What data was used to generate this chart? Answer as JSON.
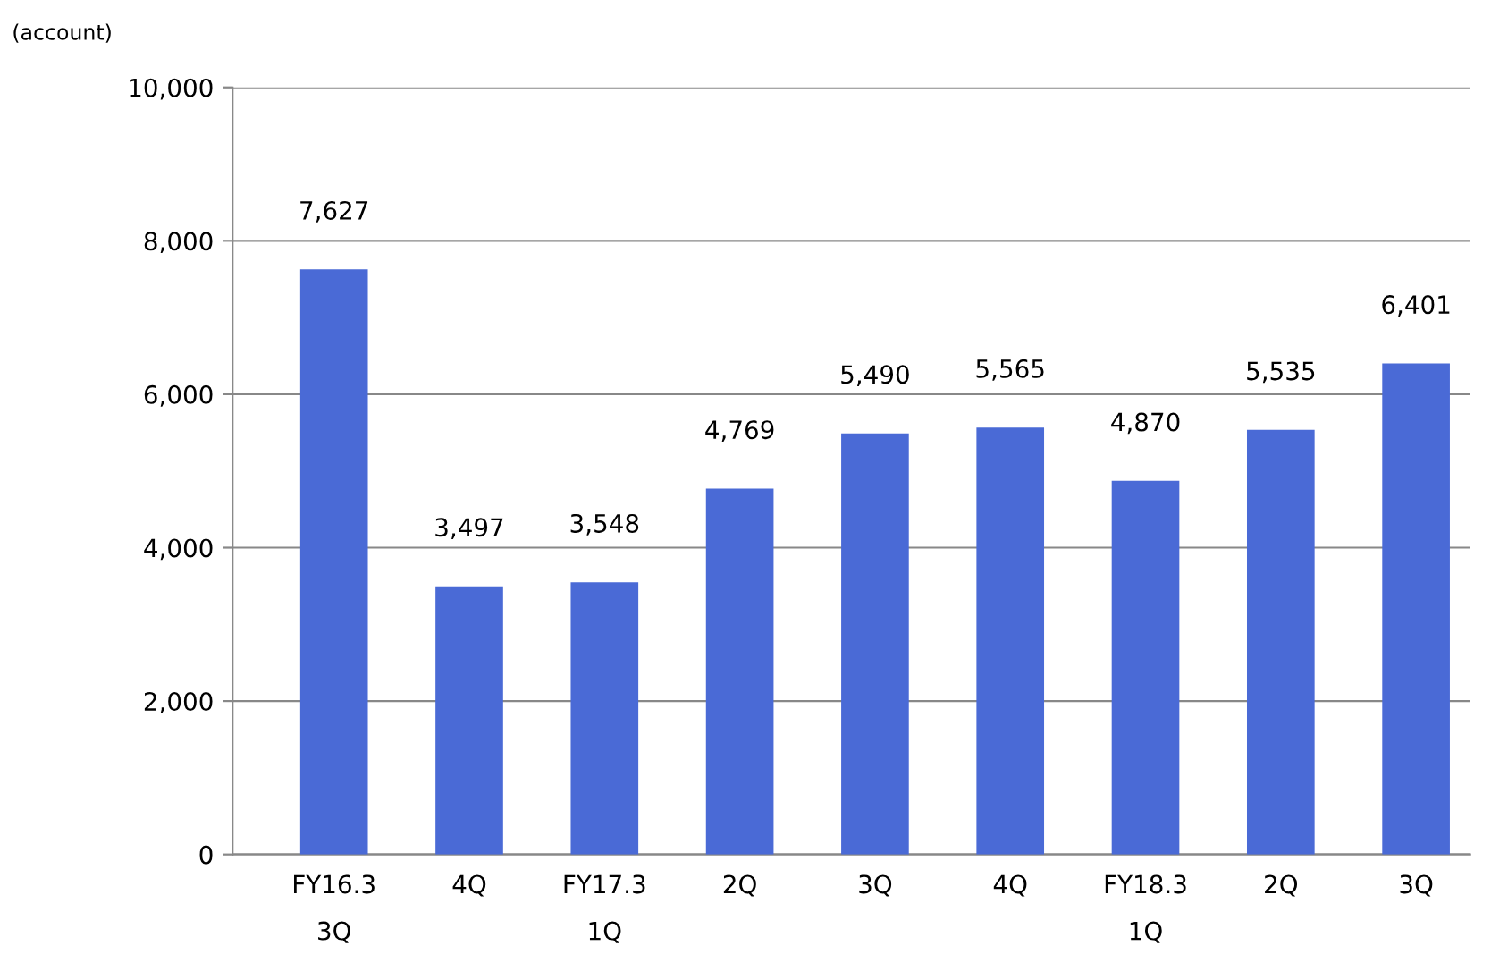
{
  "chart_data": {
    "type": "bar",
    "ylabel": "(account)",
    "categories": [
      "FY16.3\n3Q",
      "4Q",
      "FY17.3\n1Q",
      "2Q",
      "3Q",
      "4Q",
      "FY18.3\n1Q",
      "2Q",
      "3Q"
    ],
    "values": [
      7627,
      3497,
      3548,
      4769,
      5490,
      5565,
      4870,
      5535,
      6401
    ],
    "value_labels": [
      "7,627",
      "3,497",
      "3,548",
      "4,769",
      "5,490",
      "5,565",
      "4,870",
      "5,535",
      "6,401"
    ],
    "color": "#4a6ad6",
    "ylim": [
      0,
      10000
    ],
    "yticks": [
      {
        "value": 0,
        "label": "0"
      },
      {
        "value": 2000,
        "label": "2,000"
      },
      {
        "value": 4000,
        "label": "4,000"
      },
      {
        "value": 6000,
        "label": "6,000"
      },
      {
        "value": 8000,
        "label": "8,000"
      },
      {
        "value": 10000,
        "label": "10,000"
      }
    ],
    "grid": "y"
  }
}
